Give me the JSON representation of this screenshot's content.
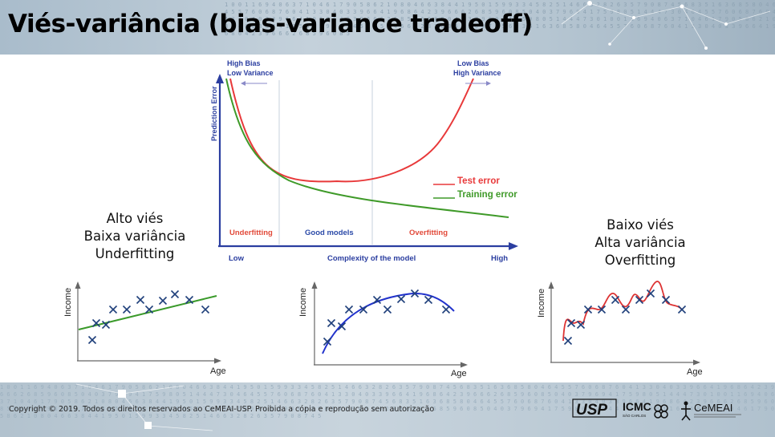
{
  "title": "Viés-variância (bias-variance tradeoff)",
  "copyright": "Copyright © 2019. Todos os direitos reservados ao CeMEAI-USP. Proibida a cópia e reprodução sem autorização",
  "logos": {
    "usp": "USP",
    "icmc": "ICMC",
    "icmc_sub": "SÃO CARLOS",
    "cemeai": "CeMEAI"
  },
  "captions": {
    "left": [
      "Alto viés",
      "Baixa variância",
      "Underfitting"
    ],
    "right": [
      "Baixo viés",
      "Alta variância",
      "Overfitting"
    ]
  },
  "main_chart": {
    "ylabel": "Prediction Error",
    "xlabel": "Complexity of the model",
    "x_low": "Low",
    "x_high": "High",
    "top_left": [
      "High Bias",
      "Low Variance"
    ],
    "top_right": [
      "Low Bias",
      "High Variance"
    ],
    "regions": [
      "Underfitting",
      "Good models",
      "Overfitting"
    ],
    "legend": {
      "test": "Test error",
      "training": "Training error"
    },
    "colors": {
      "test": "#e8393a",
      "training": "#3f9a29",
      "axis": "#2b3ea0",
      "region_label": "#e24a3a",
      "good_label": "#2b4aa8"
    }
  },
  "scatter_plots": {
    "ylabel": "Income",
    "xlabel": "Age",
    "point_color": "#1f3f7a",
    "fit_colors": {
      "under": "#3a9a2a",
      "good": "#2233cc",
      "over": "#dd3333"
    }
  }
}
